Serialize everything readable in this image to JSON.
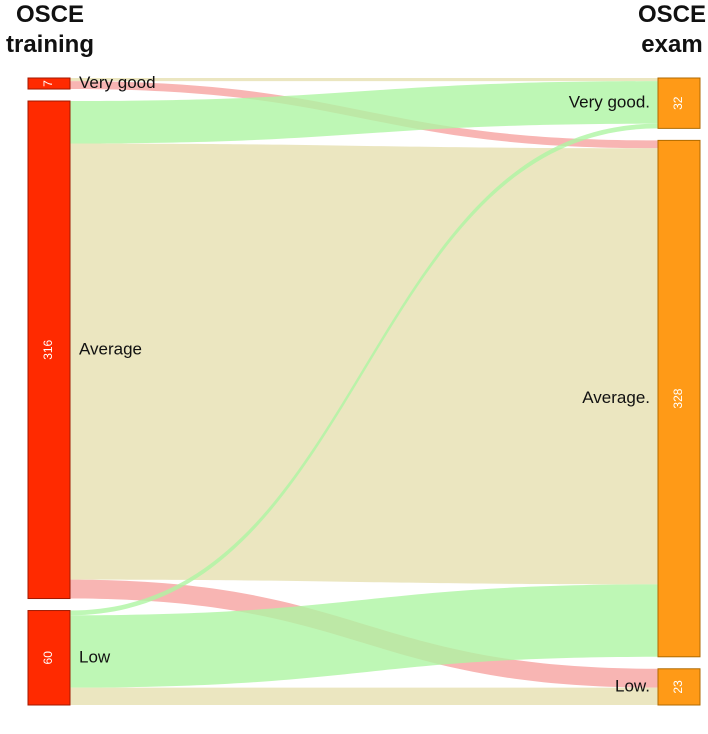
{
  "chart_data": {
    "type": "sankey",
    "left_title": "OSCE training",
    "right_title": "OSCE exam",
    "left_color": "#ff2a00",
    "right_color": "#ff9a17",
    "left_nodes": [
      {
        "label": "Very good",
        "value": 7
      },
      {
        "label": "Average",
        "value": 316
      },
      {
        "label": "Low",
        "value": 60
      }
    ],
    "right_nodes": [
      {
        "label": "Very good.",
        "value": 32
      },
      {
        "label": "Average.",
        "value": 328
      },
      {
        "label": "Low.",
        "value": 23
      }
    ],
    "links": [
      {
        "source": "Very good",
        "target": "Very good.",
        "value": 2,
        "color": "#e6e0b0"
      },
      {
        "source": "Very good",
        "target": "Average.",
        "value": 5,
        "color": "#f6a3a0"
      },
      {
        "source": "Average",
        "target": "Very good.",
        "value": 27,
        "color": "#aef5a3"
      },
      {
        "source": "Average",
        "target": "Average.",
        "value": 277,
        "color": "#e6e0b0"
      },
      {
        "source": "Average",
        "target": "Low.",
        "value": 12,
        "color": "#f6a3a0"
      },
      {
        "source": "Low",
        "target": "Very good.",
        "value": 3,
        "color": "#aef5a3"
      },
      {
        "source": "Low",
        "target": "Average.",
        "value": 46,
        "color": "#aef5a3"
      },
      {
        "source": "Low",
        "target": "Low.",
        "value": 11,
        "color": "#e6e0b0"
      }
    ]
  }
}
